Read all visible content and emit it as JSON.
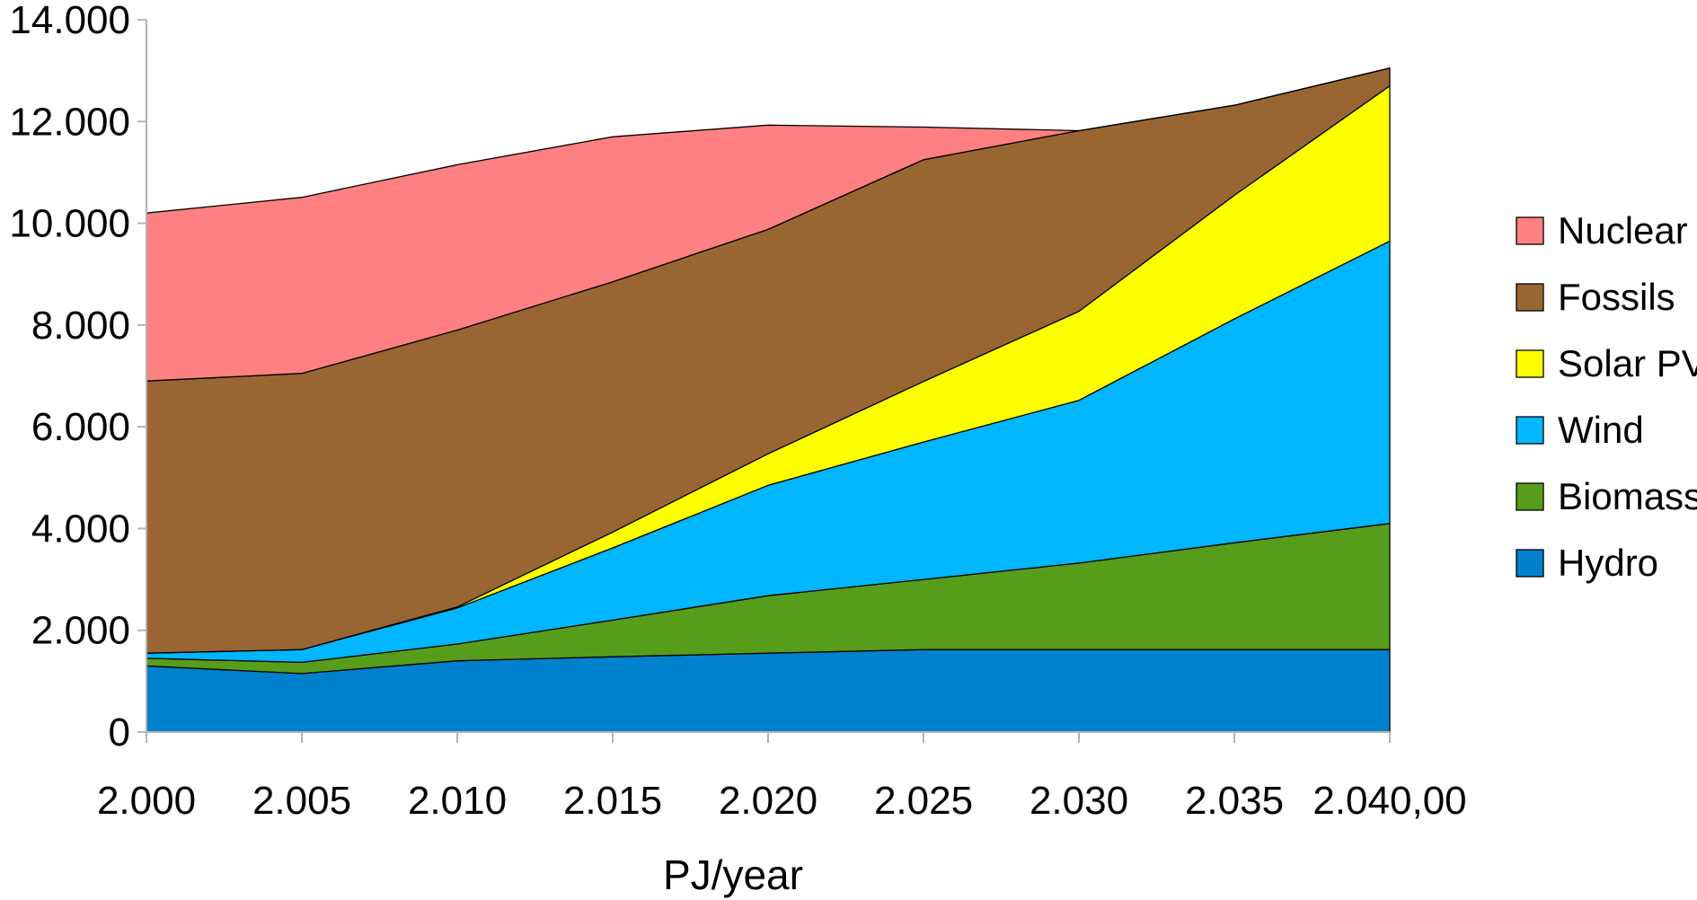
{
  "chart_data": {
    "type": "area",
    "stacked": true,
    "title": "",
    "xlabel": "PJ/year",
    "ylabel": "",
    "x": [
      2000,
      2005,
      2010,
      2015,
      2020,
      2025,
      2030,
      2035,
      2040
    ],
    "x_tick_labels": [
      "2.000",
      "2.005",
      "2.010",
      "2.015",
      "2.020",
      "2.025",
      "2.030",
      "2.035",
      "2.040,00"
    ],
    "ylim": [
      0,
      14000
    ],
    "y_ticks": [
      0,
      2000,
      4000,
      6000,
      8000,
      10000,
      12000,
      14000
    ],
    "y_tick_labels": [
      "0",
      "2.000",
      "4.000",
      "6.000",
      "8.000",
      "10.000",
      "12.000",
      "14.000"
    ],
    "grid": false,
    "legend_position": "right",
    "series": [
      {
        "name": "Hydro",
        "color": "#0081CE",
        "values": [
          1300,
          1150,
          1400,
          1480,
          1550,
          1620,
          1620,
          1620,
          1620
        ]
      },
      {
        "name": "Biomass",
        "color": "#579D1C",
        "values": [
          150,
          220,
          330,
          720,
          1130,
          1380,
          1700,
          2100,
          2480
        ]
      },
      {
        "name": "Wind",
        "color": "#00B6FF",
        "values": [
          100,
          250,
          710,
          1420,
          2170,
          2700,
          3200,
          4400,
          5550
        ]
      },
      {
        "name": "Solar PV",
        "color": "#FFFF00",
        "values": [
          0,
          0,
          20,
          310,
          620,
          1190,
          1750,
          2430,
          3050
        ]
      },
      {
        "name": "Fossils",
        "color": "#996633",
        "values": [
          5350,
          5430,
          5440,
          4920,
          4410,
          4360,
          3550,
          1770,
          350
        ]
      },
      {
        "name": "Nuclear",
        "color": "#FF8080",
        "values": [
          3300,
          3460,
          3250,
          2850,
          2050,
          640,
          0,
          0,
          0
        ]
      }
    ],
    "legend_order": [
      "Nuclear",
      "Fossils",
      "Solar PV",
      "Wind",
      "Biomass",
      "Hydro"
    ]
  }
}
